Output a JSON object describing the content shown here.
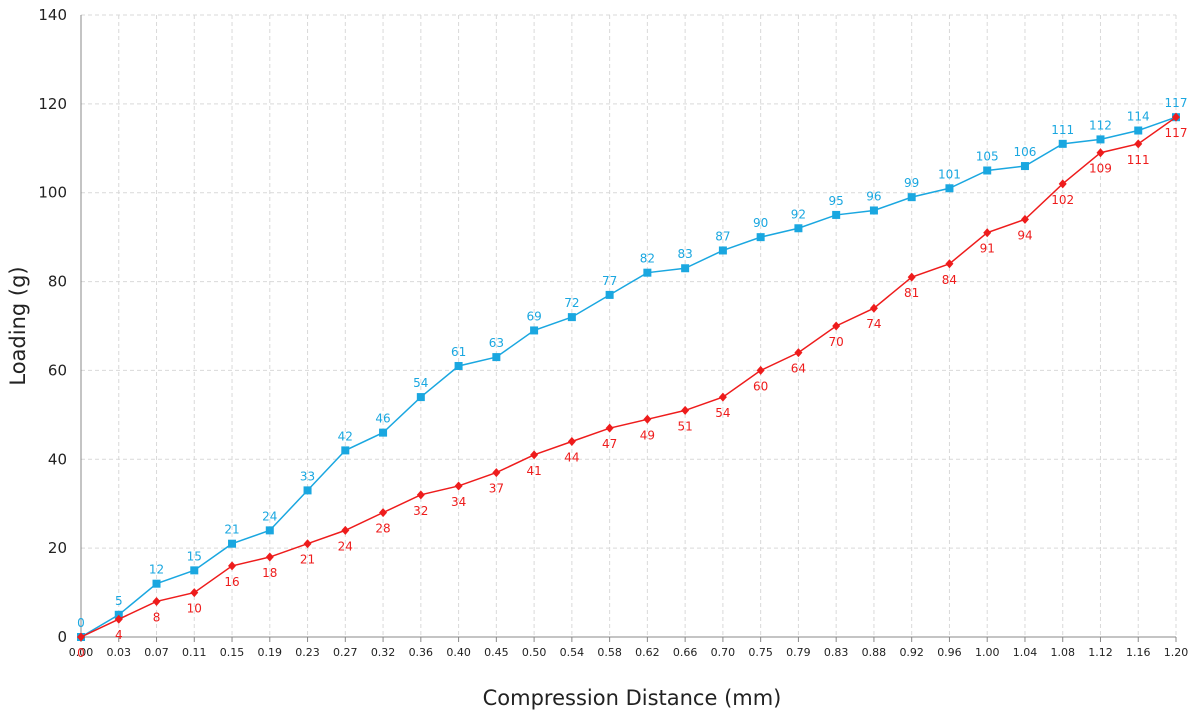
{
  "chart_data": {
    "type": "line",
    "xlabel": "Compression Distance (mm)",
    "ylabel": "Loading (g)",
    "ylim": [
      0,
      140
    ],
    "yticks": [
      "0",
      "20",
      "40",
      "60",
      "80",
      "100",
      "120",
      "140"
    ],
    "categories": [
      "0.00",
      "0.03",
      "0.07",
      "0.11",
      "0.15",
      "0.19",
      "0.23",
      "0.27",
      "0.32",
      "0.36",
      "0.40",
      "0.45",
      "0.50",
      "0.54",
      "0.58",
      "0.62",
      "0.66",
      "0.70",
      "0.75",
      "0.79",
      "0.83",
      "0.88",
      "0.92",
      "0.96",
      "1.00",
      "1.04",
      "1.08",
      "1.12",
      "1.16",
      "1.20"
    ],
    "grid": true,
    "series": [
      {
        "marker": "square",
        "color": "#1aa7e0",
        "label_position": "above",
        "values": [
          0,
          5,
          12,
          15,
          21,
          24,
          33,
          42,
          46,
          54,
          61,
          63,
          69,
          72,
          77,
          82,
          83,
          87,
          90,
          92,
          95,
          96,
          99,
          101,
          105,
          106,
          111,
          112,
          114,
          117
        ]
      },
      {
        "marker": "diamond",
        "color": "#ee1c1c",
        "label_position": "below",
        "values": [
          0,
          4,
          8,
          10,
          16,
          18,
          21,
          24,
          28,
          32,
          34,
          37,
          41,
          44,
          47,
          49,
          51,
          54,
          60,
          64,
          70,
          74,
          81,
          84,
          91,
          94,
          102,
          109,
          111,
          117
        ]
      }
    ]
  },
  "colors": {
    "grid": "#d9d9d9",
    "axis": "#888888",
    "text": "#222222"
  }
}
